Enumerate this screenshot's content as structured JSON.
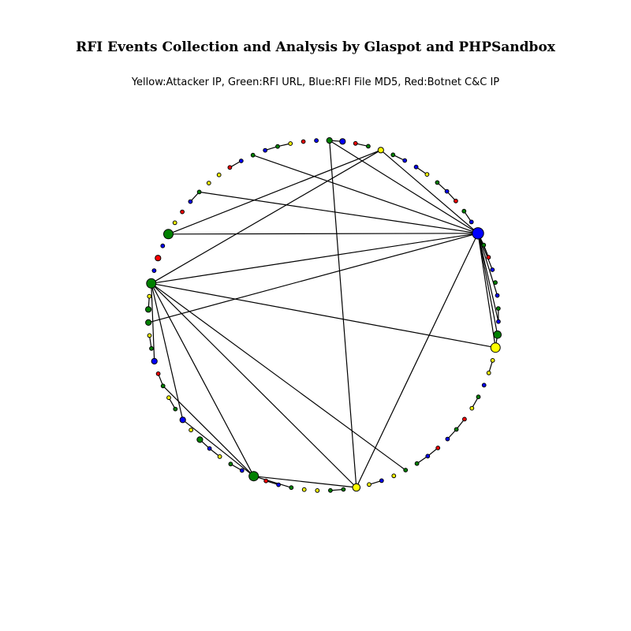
{
  "header": {
    "title": "RFI Events Collection and Analysis by Glaspot and PHPSandbox",
    "subtitle": "Yellow:Attacker IP, Green:RFI URL, Blue:RFI File MD5, Red:Botnet C&C IP"
  },
  "legend_colors": {
    "attacker_ip": "#ffff00",
    "rfi_url": "#008000",
    "rfi_file_md5": "#0000ff",
    "botnet_cc_ip": "#ff0000"
  },
  "chart_data": {
    "type": "network-graph",
    "layout": "circular",
    "node_types": [
      "attacker_ip",
      "rfi_url",
      "rfi_file_md5",
      "botnet_cc_ip"
    ],
    "nodes": [
      {
        "id": 0,
        "type": "rfi_file_md5",
        "weight": 3
      },
      {
        "id": 1,
        "type": "rfi_url",
        "weight": 1
      },
      {
        "id": 2,
        "type": "botnet_cc_ip",
        "weight": 1
      },
      {
        "id": 3,
        "type": "rfi_file_md5",
        "weight": 1
      },
      {
        "id": 4,
        "type": "rfi_url",
        "weight": 1
      },
      {
        "id": 5,
        "type": "rfi_file_md5",
        "weight": 1
      },
      {
        "id": 6,
        "type": "rfi_url",
        "weight": 1
      },
      {
        "id": 7,
        "type": "rfi_file_md5",
        "weight": 1
      },
      {
        "id": 8,
        "type": "rfi_url",
        "weight": 2
      },
      {
        "id": 9,
        "type": "attacker_ip",
        "weight": 2.5
      },
      {
        "id": 10,
        "type": "attacker_ip",
        "weight": 1
      },
      {
        "id": 11,
        "type": "attacker_ip",
        "weight": 1
      },
      {
        "id": 12,
        "type": "rfi_file_md5",
        "weight": 1
      },
      {
        "id": 13,
        "type": "rfi_url",
        "weight": 1
      },
      {
        "id": 14,
        "type": "attacker_ip",
        "weight": 1
      },
      {
        "id": 15,
        "type": "botnet_cc_ip",
        "weight": 1
      },
      {
        "id": 16,
        "type": "rfi_url",
        "weight": 1
      },
      {
        "id": 17,
        "type": "rfi_file_md5",
        "weight": 1
      },
      {
        "id": 18,
        "type": "botnet_cc_ip",
        "weight": 1
      },
      {
        "id": 19,
        "type": "rfi_file_md5",
        "weight": 1
      },
      {
        "id": 20,
        "type": "rfi_url",
        "weight": 1
      },
      {
        "id": 21,
        "type": "rfi_url",
        "weight": 1
      },
      {
        "id": 22,
        "type": "attacker_ip",
        "weight": 1
      },
      {
        "id": 23,
        "type": "rfi_file_md5",
        "weight": 1
      },
      {
        "id": 24,
        "type": "attacker_ip",
        "weight": 1
      },
      {
        "id": 25,
        "type": "attacker_ip",
        "weight": 2
      },
      {
        "id": 26,
        "type": "rfi_url",
        "weight": 1
      },
      {
        "id": 27,
        "type": "rfi_url",
        "weight": 1
      },
      {
        "id": 28,
        "type": "attacker_ip",
        "weight": 1
      },
      {
        "id": 29,
        "type": "attacker_ip",
        "weight": 1
      },
      {
        "id": 30,
        "type": "rfi_url",
        "weight": 1
      },
      {
        "id": 31,
        "type": "rfi_file_md5",
        "weight": 1
      },
      {
        "id": 32,
        "type": "botnet_cc_ip",
        "weight": 1
      },
      {
        "id": 33,
        "type": "rfi_url",
        "weight": 2.5
      },
      {
        "id": 34,
        "type": "rfi_file_md5",
        "weight": 1
      },
      {
        "id": 35,
        "type": "rfi_url",
        "weight": 1
      },
      {
        "id": 36,
        "type": "attacker_ip",
        "weight": 1
      },
      {
        "id": 37,
        "type": "rfi_file_md5",
        "weight": 1
      },
      {
        "id": 38,
        "type": "rfi_url",
        "weight": 1.5
      },
      {
        "id": 39,
        "type": "attacker_ip",
        "weight": 1
      },
      {
        "id": 40,
        "type": "rfi_file_md5",
        "weight": 1.5
      },
      {
        "id": 41,
        "type": "rfi_url",
        "weight": 1
      },
      {
        "id": 42,
        "type": "attacker_ip",
        "weight": 1
      },
      {
        "id": 43,
        "type": "rfi_url",
        "weight": 1
      },
      {
        "id": 44,
        "type": "botnet_cc_ip",
        "weight": 1
      },
      {
        "id": 45,
        "type": "rfi_file_md5",
        "weight": 1.5
      },
      {
        "id": 46,
        "type": "rfi_url",
        "weight": 1
      },
      {
        "id": 47,
        "type": "attacker_ip",
        "weight": 1
      },
      {
        "id": 48,
        "type": "rfi_url",
        "weight": 1.5
      },
      {
        "id": 49,
        "type": "rfi_url",
        "weight": 1.5
      },
      {
        "id": 50,
        "type": "attacker_ip",
        "weight": 1
      },
      {
        "id": 51,
        "type": "rfi_url",
        "weight": 2.5
      },
      {
        "id": 52,
        "type": "rfi_file_md5",
        "weight": 1
      },
      {
        "id": 53,
        "type": "botnet_cc_ip",
        "weight": 1.5
      },
      {
        "id": 54,
        "type": "rfi_file_md5",
        "weight": 1
      },
      {
        "id": 55,
        "type": "rfi_url",
        "weight": 2.5
      },
      {
        "id": 56,
        "type": "attacker_ip",
        "weight": 1
      },
      {
        "id": 57,
        "type": "botnet_cc_ip",
        "weight": 1
      },
      {
        "id": 58,
        "type": "rfi_file_md5",
        "weight": 1
      },
      {
        "id": 59,
        "type": "rfi_url",
        "weight": 1
      },
      {
        "id": 60,
        "type": "attacker_ip",
        "weight": 1
      },
      {
        "id": 61,
        "type": "attacker_ip",
        "weight": 1
      },
      {
        "id": 62,
        "type": "botnet_cc_ip",
        "weight": 1
      },
      {
        "id": 63,
        "type": "rfi_file_md5",
        "weight": 1
      },
      {
        "id": 64,
        "type": "rfi_url",
        "weight": 1
      },
      {
        "id": 65,
        "type": "rfi_file_md5",
        "weight": 1
      },
      {
        "id": 66,
        "type": "rfi_url",
        "weight": 1
      },
      {
        "id": 67,
        "type": "attacker_ip",
        "weight": 1
      },
      {
        "id": 68,
        "type": "botnet_cc_ip",
        "weight": 1
      },
      {
        "id": 69,
        "type": "rfi_file_md5",
        "weight": 1
      },
      {
        "id": 70,
        "type": "rfi_url",
        "weight": 1.5
      },
      {
        "id": 71,
        "type": "rfi_file_md5",
        "weight": 1.5
      },
      {
        "id": 72,
        "type": "botnet_cc_ip",
        "weight": 1
      },
      {
        "id": 73,
        "type": "rfi_url",
        "weight": 1
      },
      {
        "id": 74,
        "type": "attacker_ip",
        "weight": 1.5
      },
      {
        "id": 75,
        "type": "rfi_url",
        "weight": 1
      },
      {
        "id": 76,
        "type": "rfi_file_md5",
        "weight": 1
      },
      {
        "id": 77,
        "type": "rfi_file_md5",
        "weight": 1
      },
      {
        "id": 78,
        "type": "attacker_ip",
        "weight": 1
      },
      {
        "id": 79,
        "type": "rfi_url",
        "weight": 1
      },
      {
        "id": 80,
        "type": "rfi_file_md5",
        "weight": 1
      },
      {
        "id": 81,
        "type": "botnet_cc_ip",
        "weight": 1
      },
      {
        "id": 82,
        "type": "rfi_url",
        "weight": 1
      },
      {
        "id": 83,
        "type": "rfi_file_md5",
        "weight": 1
      }
    ],
    "edges": [
      [
        0,
        9
      ],
      [
        0,
        8
      ],
      [
        0,
        48
      ],
      [
        0,
        51
      ],
      [
        0,
        55
      ],
      [
        0,
        25
      ],
      [
        0,
        70
      ],
      [
        0,
        74
      ],
      [
        0,
        59
      ],
      [
        0,
        64
      ],
      [
        0,
        3
      ],
      [
        0,
        5
      ],
      [
        0,
        7
      ],
      [
        0,
        1
      ],
      [
        9,
        8
      ],
      [
        9,
        51
      ],
      [
        51,
        33
      ],
      [
        51,
        45
      ],
      [
        51,
        25
      ],
      [
        51,
        74
      ],
      [
        51,
        40
      ],
      [
        51,
        21
      ],
      [
        25,
        33
      ],
      [
        25,
        70
      ],
      [
        33,
        43
      ],
      [
        33,
        30
      ],
      [
        33,
        40
      ],
      [
        74,
        55
      ],
      [
        82,
        83
      ],
      [
        81,
        80
      ],
      [
        80,
        79
      ],
      [
        78,
        77
      ],
      [
        76,
        75
      ],
      [
        73,
        72
      ],
      [
        71,
        70
      ],
      [
        67,
        66
      ],
      [
        66,
        65
      ],
      [
        63,
        62
      ],
      [
        59,
        58
      ],
      [
        44,
        43
      ],
      [
        42,
        41
      ],
      [
        46,
        47
      ],
      [
        1,
        2
      ],
      [
        6,
        7
      ],
      [
        10,
        11
      ],
      [
        13,
        14
      ],
      [
        16,
        15
      ],
      [
        16,
        17
      ],
      [
        18,
        19
      ],
      [
        19,
        20
      ],
      [
        23,
        24
      ],
      [
        26,
        27
      ],
      [
        31,
        32
      ],
      [
        34,
        35
      ],
      [
        36,
        37
      ],
      [
        38,
        37
      ],
      [
        49,
        50
      ]
    ]
  }
}
